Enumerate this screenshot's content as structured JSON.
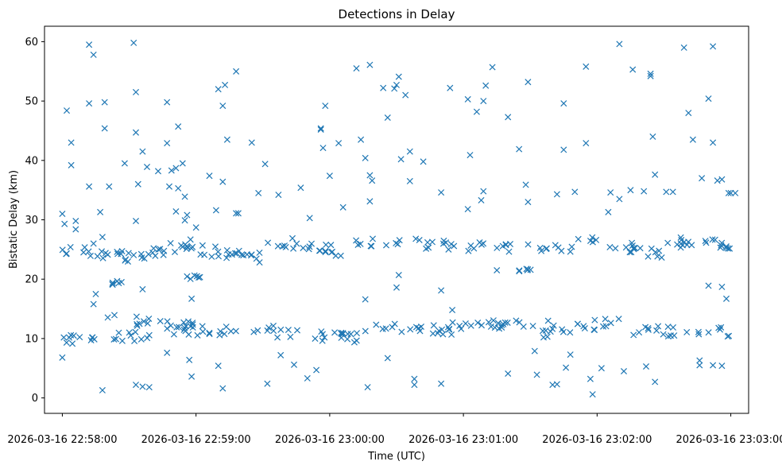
{
  "chart_data": {
    "type": "scatter",
    "title": "Detections in Delay",
    "xlabel": "Time (UTC)",
    "ylabel": "Bistatic Delay (km)",
    "marker": "x",
    "color": "#1f77b4",
    "xlim_seconds": [
      -8,
      308
    ],
    "ylim": [
      -2.6,
      62.6
    ],
    "x_ticks": [
      {
        "seconds": 0,
        "label": "2026-03-16 22:58:00"
      },
      {
        "seconds": 60,
        "label": "2026-03-16 22:59:00"
      },
      {
        "seconds": 120,
        "label": "2026-03-16 23:00:00"
      },
      {
        "seconds": 180,
        "label": "2026-03-16 23:01:00"
      },
      {
        "seconds": 240,
        "label": "2026-03-16 23:02:00"
      },
      {
        "seconds": 300,
        "label": "2026-03-16 23:03:00"
      }
    ],
    "y_ticks": [
      0,
      10,
      20,
      30,
      40,
      50,
      60
    ],
    "x_reference": "2026-03-16 22:58:00",
    "x_units": "seconds after 22:58:00",
    "detections": {
      "band_upper": {
        "segments": [
          [
            0,
            24.8,
            35,
            23.6
          ],
          [
            35,
            24.2,
            60,
            26.0
          ],
          [
            60,
            25.0,
            90,
            23.6
          ],
          [
            90,
            26.8,
            130,
            24.4
          ],
          [
            130,
            26.6,
            180,
            25.7
          ],
          [
            180,
            25.6,
            230,
            25.4
          ],
          [
            230,
            27.5,
            270,
            24.0
          ],
          [
            270,
            26.3,
            300,
            25.8
          ]
        ],
        "points_per_segment": 22,
        "jitter": 0.9
      },
      "band_lower": {
        "segments": [
          [
            0,
            9.6,
            40,
            10.6
          ],
          [
            20,
            13.3,
            60,
            12.0
          ],
          [
            50,
            11.2,
            95,
            11.5
          ],
          [
            95,
            10.8,
            135,
            10.2
          ],
          [
            135,
            11.8,
            175,
            11.4
          ],
          [
            175,
            12.2,
            215,
            12.3
          ],
          [
            215,
            11.0,
            250,
            12.9
          ],
          [
            250,
            11.4,
            300,
            11.0
          ]
        ],
        "points_per_segment": 22,
        "jitter": 0.9
      },
      "band_mid_short": {
        "segments": [
          [
            55,
            20.2,
            62,
            20.6
          ],
          [
            22,
            19.4,
            30,
            19.2
          ],
          [
            205,
            21.5,
            215,
            21.3
          ]
        ],
        "points_per_segment": 6,
        "jitter": 0.4
      },
      "scattered": [
        [
          0,
          6.8
        ],
        [
          0,
          31.0
        ],
        [
          1,
          29.3
        ],
        [
          2,
          48.4
        ],
        [
          4,
          43.0
        ],
        [
          4,
          39.2
        ],
        [
          6,
          29.8
        ],
        [
          6,
          28.4
        ],
        [
          12,
          59.5
        ],
        [
          12,
          49.6
        ],
        [
          12,
          35.6
        ],
        [
          14,
          57.8
        ],
        [
          14,
          26.0
        ],
        [
          17,
          31.3
        ],
        [
          18,
          27.1
        ],
        [
          19,
          45.4
        ],
        [
          19,
          49.8
        ],
        [
          21,
          35.6
        ],
        [
          18,
          1.3
        ],
        [
          14,
          15.8
        ],
        [
          15,
          17.5
        ],
        [
          28,
          39.5
        ],
        [
          32,
          59.8
        ],
        [
          33,
          51.5
        ],
        [
          33,
          44.7
        ],
        [
          33,
          29.8
        ],
        [
          34,
          36.0
        ],
        [
          36,
          41.5
        ],
        [
          36,
          18.3
        ],
        [
          38,
          38.9
        ],
        [
          33,
          2.2
        ],
        [
          36,
          1.9
        ],
        [
          39,
          1.8
        ],
        [
          43,
          38.2
        ],
        [
          47,
          49.8
        ],
        [
          47,
          42.9
        ],
        [
          47,
          7.6
        ],
        [
          48,
          35.6
        ],
        [
          49,
          38.3
        ],
        [
          51,
          38.7
        ],
        [
          51,
          31.4
        ],
        [
          52,
          45.7
        ],
        [
          52,
          35.3
        ],
        [
          54,
          39.5
        ],
        [
          55,
          33.9
        ],
        [
          55,
          29.9
        ],
        [
          56,
          30.8
        ],
        [
          57,
          6.4
        ],
        [
          58,
          3.6
        ],
        [
          58,
          16.7
        ],
        [
          60,
          28.7
        ],
        [
          66,
          37.4
        ],
        [
          69,
          31.6
        ],
        [
          70,
          52.0
        ],
        [
          70,
          5.4
        ],
        [
          72,
          36.4
        ],
        [
          72,
          49.2
        ],
        [
          73,
          52.7
        ],
        [
          74,
          43.5
        ],
        [
          72,
          1.6
        ],
        [
          78,
          55.0
        ],
        [
          78,
          31.1
        ],
        [
          79,
          31.1
        ],
        [
          85,
          43.0
        ],
        [
          88,
          34.5
        ],
        [
          91,
          39.4
        ],
        [
          92,
          2.4
        ],
        [
          97,
          34.2
        ],
        [
          98,
          7.2
        ],
        [
          104,
          5.6
        ],
        [
          107,
          35.4
        ],
        [
          110,
          3.3
        ],
        [
          111,
          30.3
        ],
        [
          114,
          4.7
        ],
        [
          116,
          45.2
        ],
        [
          116,
          45.4
        ],
        [
          117,
          42.1
        ],
        [
          118,
          49.2
        ],
        [
          120,
          37.4
        ],
        [
          124,
          42.9
        ],
        [
          126,
          32.1
        ],
        [
          132,
          55.5
        ],
        [
          134,
          43.5
        ],
        [
          136,
          40.4
        ],
        [
          138,
          56.1
        ],
        [
          138,
          37.5
        ],
        [
          139,
          36.6
        ],
        [
          138,
          33.1
        ],
        [
          136,
          16.6
        ],
        [
          137,
          1.8
        ],
        [
          144,
          52.2
        ],
        [
          146,
          47.2
        ],
        [
          146,
          6.7
        ],
        [
          149,
          52.1
        ],
        [
          150,
          52.7
        ],
        [
          151,
          54.1
        ],
        [
          152,
          40.2
        ],
        [
          154,
          51.0
        ],
        [
          156,
          41.5
        ],
        [
          156,
          36.5
        ],
        [
          151,
          20.7
        ],
        [
          150,
          18.6
        ],
        [
          158,
          2.2
        ],
        [
          158,
          3.2
        ],
        [
          162,
          39.8
        ],
        [
          170,
          34.6
        ],
        [
          170,
          18.1
        ],
        [
          174,
          52.2
        ],
        [
          170,
          2.4
        ],
        [
          175,
          14.8
        ],
        [
          182,
          50.3
        ],
        [
          182,
          31.8
        ],
        [
          183,
          40.9
        ],
        [
          186,
          48.2
        ],
        [
          188,
          33.3
        ],
        [
          189,
          50.0
        ],
        [
          189,
          34.8
        ],
        [
          190,
          52.6
        ],
        [
          193,
          55.7
        ],
        [
          195,
          21.5
        ],
        [
          200,
          47.3
        ],
        [
          205,
          41.9
        ],
        [
          208,
          35.9
        ],
        [
          209,
          33.0
        ],
        [
          209,
          53.2
        ],
        [
          213,
          3.9
        ],
        [
          220,
          2.2
        ],
        [
          222,
          34.3
        ],
        [
          225,
          49.6
        ],
        [
          225,
          41.8
        ],
        [
          230,
          34.7
        ],
        [
          235,
          42.9
        ],
        [
          235,
          55.8
        ],
        [
          237,
          3.2
        ],
        [
          238,
          0.6
        ],
        [
          245,
          31.3
        ],
        [
          246,
          34.6
        ],
        [
          250,
          59.6
        ],
        [
          250,
          33.5
        ],
        [
          252,
          4.5
        ],
        [
          255,
          35.0
        ],
        [
          256,
          55.3
        ],
        [
          261,
          34.8
        ],
        [
          264,
          54.6
        ],
        [
          264,
          54.2
        ],
        [
          265,
          44.0
        ],
        [
          266,
          37.6
        ],
        [
          271,
          34.7
        ],
        [
          274,
          34.7
        ],
        [
          279,
          59.0
        ],
        [
          281,
          48.0
        ],
        [
          283,
          43.5
        ],
        [
          286,
          5.5
        ],
        [
          286,
          6.3
        ],
        [
          287,
          37.0
        ],
        [
          290,
          50.4
        ],
        [
          290,
          18.9
        ],
        [
          292,
          43.0
        ],
        [
          292,
          59.2
        ],
        [
          294,
          36.6
        ],
        [
          296,
          36.8
        ],
        [
          298,
          16.7
        ],
        [
          299,
          34.5
        ],
        [
          300,
          34.5
        ],
        [
          302,
          34.5
        ],
        [
          262,
          5.3
        ],
        [
          266,
          2.7
        ],
        [
          292,
          5.5
        ],
        [
          296,
          5.4
        ],
        [
          296,
          18.7
        ],
        [
          242,
          5.0
        ],
        [
          228,
          7.3
        ],
        [
          226,
          5.1
        ],
        [
          200,
          4.1
        ],
        [
          212,
          7.9
        ],
        [
          222,
          2.3
        ],
        [
          218,
          13.0
        ]
      ]
    }
  }
}
